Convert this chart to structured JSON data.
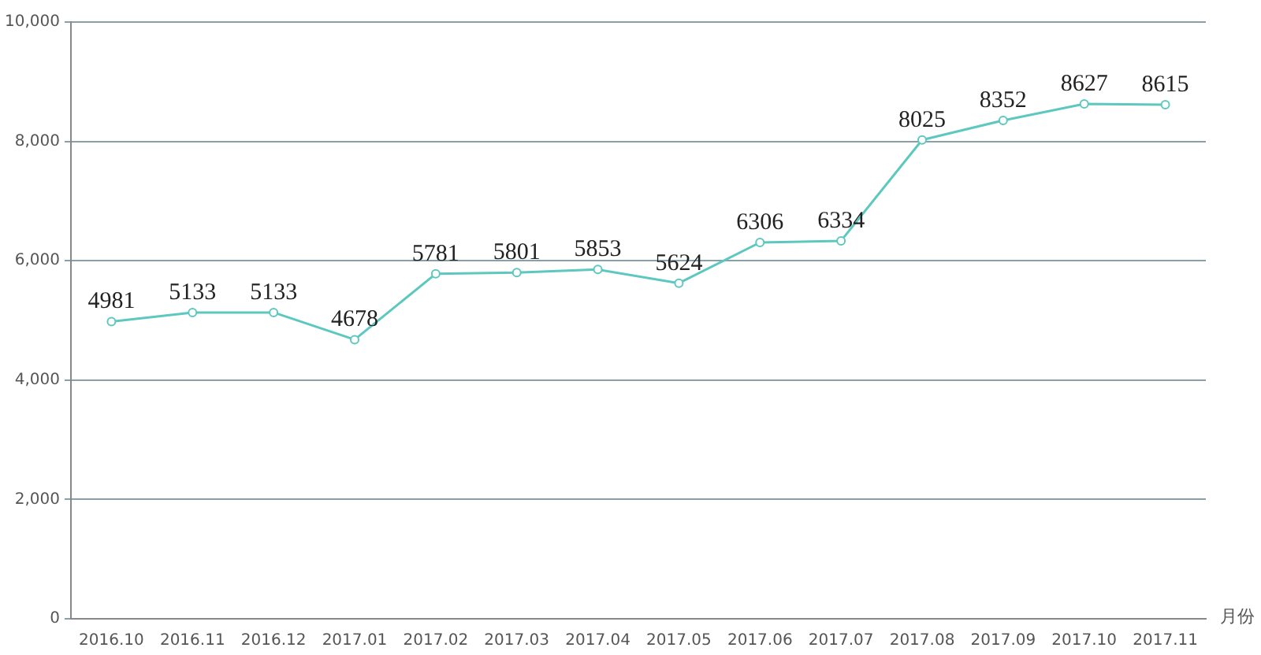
{
  "chart_data": {
    "type": "line",
    "xlabel": "月份",
    "categories": [
      "2016.10",
      "2016.11",
      "2016.12",
      "2017.01",
      "2017.02",
      "2017.03",
      "2017.04",
      "2017.05",
      "2017.06",
      "2017.07",
      "2017.08",
      "2017.09",
      "2017.10",
      "2017.11"
    ],
    "series": [
      {
        "color": "#5cc8bf",
        "values": [
          4981,
          5133,
          5133,
          4678,
          5781,
          5801,
          5853,
          5624,
          6306,
          6334,
          8025,
          8352,
          8627,
          8615
        ]
      }
    ],
    "ylim": [
      0,
      10000
    ],
    "yticks": [
      {
        "value": 0,
        "label": "0"
      },
      {
        "value": 2000,
        "label": "2,000"
      },
      {
        "value": 4000,
        "label": "4,000"
      },
      {
        "value": 6000,
        "label": "6,000"
      },
      {
        "value": 8000,
        "label": "8,000"
      },
      {
        "value": 10000,
        "label": "10,000"
      }
    ],
    "grid": "y",
    "marker": "circle",
    "data_labels": true,
    "legend": false
  }
}
